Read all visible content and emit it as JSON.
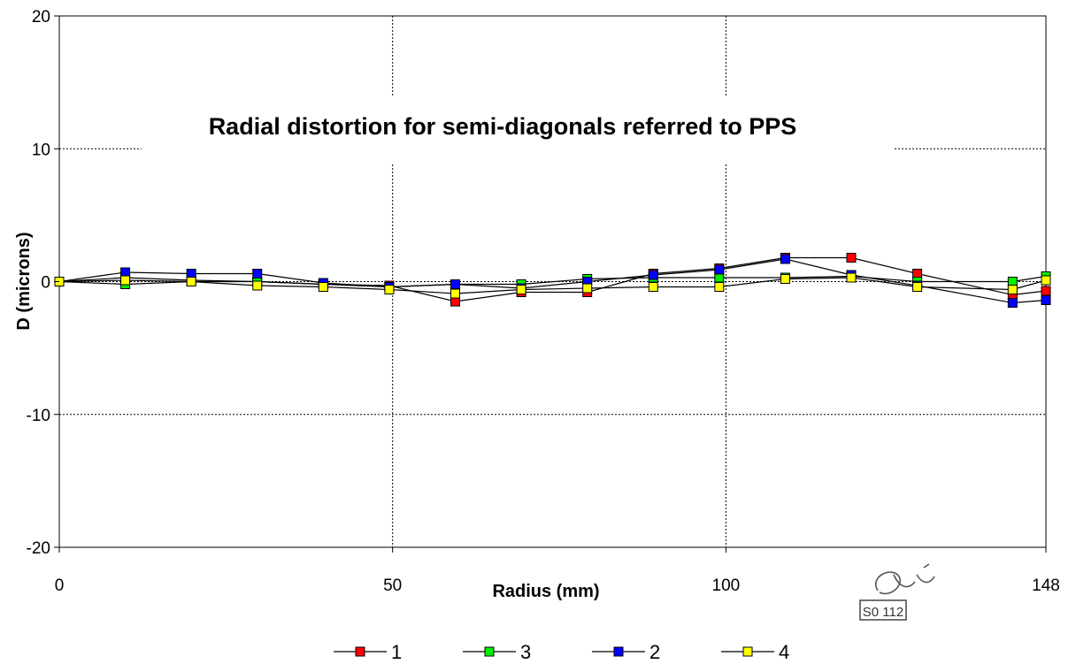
{
  "chart_data": {
    "type": "line",
    "title": "Radial distortion for semi-diagonals referred to PPS",
    "xlabel": "Radius (mm)",
    "ylabel": "D (microns)",
    "xlim": [
      0,
      148
    ],
    "ylim": [
      -20,
      20
    ],
    "x_ticks": [
      {
        "value": 0,
        "label": "0"
      },
      {
        "value": 50,
        "label": "50"
      },
      {
        "value": 100,
        "label": "100"
      },
      {
        "value": 148,
        "label": "148"
      }
    ],
    "y_ticks": [
      {
        "value": 20,
        "label": "20"
      },
      {
        "value": 10,
        "label": "10"
      },
      {
        "value": 0,
        "label": "0"
      },
      {
        "value": -10,
        "label": "-10"
      },
      {
        "value": -20,
        "label": "-20"
      }
    ],
    "grid": true,
    "legend_position": "bottom-center",
    "x": [
      0,
      9.9,
      19.8,
      29.7,
      39.6,
      49.5,
      59.4,
      69.3,
      79.2,
      89.1,
      99.0,
      108.9,
      118.8,
      128.7,
      143.0,
      148.0
    ],
    "series": [
      {
        "name": "1",
        "color": "#ff0000",
        "values": [
          0,
          0.3,
          0.1,
          0.0,
          -0.2,
          -0.3,
          -1.5,
          -0.8,
          -0.8,
          0.6,
          1.0,
          1.8,
          1.8,
          0.6,
          -1.0,
          -0.7
        ]
      },
      {
        "name": "3",
        "color": "#00ee00",
        "values": [
          0,
          -0.2,
          0.0,
          0.0,
          -0.2,
          -0.4,
          -0.2,
          -0.2,
          0.2,
          0.3,
          0.3,
          0.3,
          0.4,
          0.0,
          0.0,
          0.4
        ]
      },
      {
        "name": "2",
        "color": "#0000ff",
        "values": [
          0,
          0.7,
          0.6,
          0.6,
          -0.1,
          -0.4,
          -0.2,
          -0.5,
          0.0,
          0.5,
          0.9,
          1.7,
          0.5,
          -0.3,
          -1.6,
          -1.4
        ]
      },
      {
        "name": "4",
        "color": "#ffff00",
        "values": [
          0,
          0.1,
          0.0,
          -0.3,
          -0.4,
          -0.6,
          -0.9,
          -0.6,
          -0.5,
          -0.4,
          -0.4,
          0.2,
          0.3,
          -0.4,
          -0.6,
          0.1
        ]
      }
    ]
  },
  "stamp": {
    "text": "S0 112"
  }
}
